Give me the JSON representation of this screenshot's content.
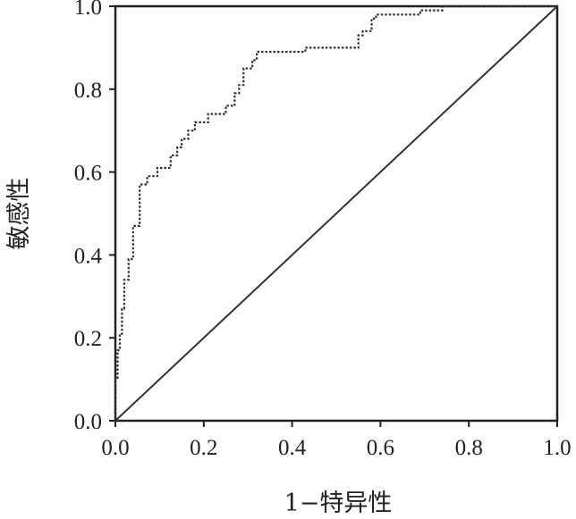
{
  "chart_data": {
    "type": "line",
    "title": "",
    "xlabel": "1−特异性",
    "ylabel": "敏感性",
    "xlim": [
      0,
      1
    ],
    "ylim": [
      0,
      1
    ],
    "xticks": [
      "0.0",
      "0.2",
      "0.4",
      "0.6",
      "0.8",
      "1.0"
    ],
    "yticks": [
      "0.0",
      "0.2",
      "0.4",
      "0.6",
      "0.8",
      "1.0"
    ],
    "grid": false,
    "legend": "none",
    "series": [
      {
        "style": "dotted",
        "color": "#333333",
        "x": [
          0.0,
          0.0,
          0.005,
          0.005,
          0.01,
          0.01,
          0.015,
          0.015,
          0.02,
          0.02,
          0.03,
          0.03,
          0.04,
          0.04,
          0.045,
          0.045,
          0.055,
          0.055,
          0.072,
          0.072,
          0.095,
          0.095,
          0.125,
          0.125,
          0.14,
          0.14,
          0.15,
          0.15,
          0.165,
          0.165,
          0.18,
          0.18,
          0.21,
          0.21,
          0.25,
          0.25,
          0.27,
          0.27,
          0.28,
          0.28,
          0.29,
          0.29,
          0.31,
          0.31,
          0.32,
          0.32,
          0.33,
          0.33,
          0.43,
          0.43,
          0.55,
          0.55,
          0.56,
          0.56,
          0.58,
          0.58,
          0.59,
          0.59,
          0.69,
          0.69,
          0.74,
          0.74,
          1.0
        ],
        "y": [
          0.0,
          0.1,
          0.1,
          0.17,
          0.17,
          0.21,
          0.21,
          0.27,
          0.27,
          0.34,
          0.34,
          0.39,
          0.39,
          0.47,
          0.47,
          0.47,
          0.47,
          0.57,
          0.57,
          0.59,
          0.59,
          0.61,
          0.61,
          0.64,
          0.64,
          0.66,
          0.66,
          0.68,
          0.68,
          0.7,
          0.7,
          0.72,
          0.72,
          0.74,
          0.74,
          0.76,
          0.76,
          0.79,
          0.79,
          0.81,
          0.81,
          0.85,
          0.85,
          0.87,
          0.87,
          0.89,
          0.89,
          0.89,
          0.89,
          0.9,
          0.9,
          0.93,
          0.93,
          0.94,
          0.94,
          0.97,
          0.97,
          0.98,
          0.98,
          0.99,
          0.99,
          1.0,
          1.0
        ]
      },
      {
        "style": "solid",
        "color": "#333333",
        "x": [
          0,
          1
        ],
        "y": [
          0,
          1
        ]
      }
    ]
  }
}
